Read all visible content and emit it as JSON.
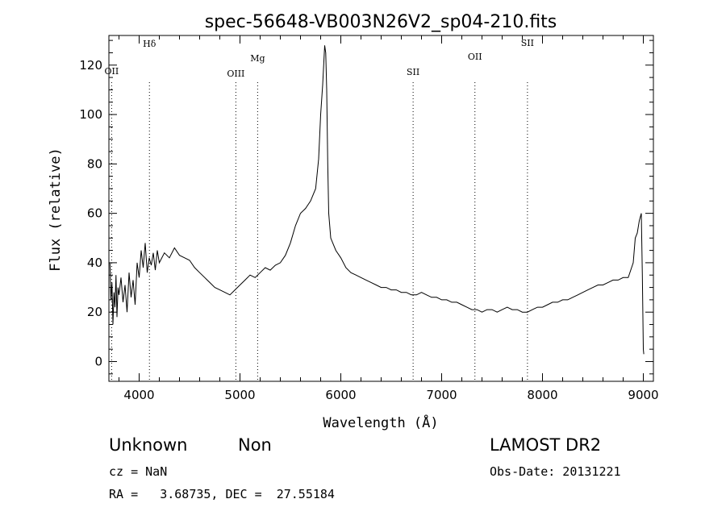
{
  "chart_data": {
    "type": "line",
    "title": "spec-56648-VB003N26V2_sp04-210.fits",
    "xlabel": "Wavelength (Å)",
    "ylabel": "Flux (relative)",
    "xlim": [
      3700,
      9100
    ],
    "ylim": [
      -8,
      132
    ],
    "xticks": [
      4000,
      5000,
      6000,
      7000,
      8000,
      9000
    ],
    "yticks": [
      0,
      20,
      40,
      60,
      80,
      100,
      120
    ],
    "grid": false,
    "series": [
      {
        "color": "#000000",
        "points": [
          [
            3710,
            40
          ],
          [
            3720,
            25
          ],
          [
            3730,
            32
          ],
          [
            3740,
            15
          ],
          [
            3750,
            28
          ],
          [
            3760,
            22
          ],
          [
            3770,
            35
          ],
          [
            3780,
            18
          ],
          [
            3790,
            30
          ],
          [
            3800,
            27
          ],
          [
            3820,
            34
          ],
          [
            3840,
            24
          ],
          [
            3860,
            31
          ],
          [
            3880,
            20
          ],
          [
            3900,
            36
          ],
          [
            3920,
            26
          ],
          [
            3940,
            33
          ],
          [
            3960,
            23
          ],
          [
            3980,
            40
          ],
          [
            4000,
            34
          ],
          [
            4020,
            45
          ],
          [
            4040,
            38
          ],
          [
            4060,
            48
          ],
          [
            4080,
            36
          ],
          [
            4100,
            42
          ],
          [
            4120,
            39
          ],
          [
            4140,
            44
          ],
          [
            4160,
            37
          ],
          [
            4180,
            45
          ],
          [
            4200,
            40
          ],
          [
            4250,
            44
          ],
          [
            4300,
            42
          ],
          [
            4350,
            46
          ],
          [
            4400,
            43
          ],
          [
            4450,
            42
          ],
          [
            4500,
            41
          ],
          [
            4550,
            38
          ],
          [
            4600,
            36
          ],
          [
            4650,
            34
          ],
          [
            4700,
            32
          ],
          [
            4750,
            30
          ],
          [
            4800,
            29
          ],
          [
            4850,
            28
          ],
          [
            4900,
            27
          ],
          [
            4950,
            29
          ],
          [
            5000,
            31
          ],
          [
            5050,
            33
          ],
          [
            5100,
            35
          ],
          [
            5150,
            34
          ],
          [
            5200,
            36
          ],
          [
            5250,
            38
          ],
          [
            5300,
            37
          ],
          [
            5350,
            39
          ],
          [
            5400,
            40
          ],
          [
            5450,
            43
          ],
          [
            5500,
            48
          ],
          [
            5550,
            55
          ],
          [
            5600,
            60
          ],
          [
            5650,
            62
          ],
          [
            5700,
            65
          ],
          [
            5750,
            70
          ],
          [
            5780,
            82
          ],
          [
            5800,
            100
          ],
          [
            5820,
            112
          ],
          [
            5840,
            128
          ],
          [
            5850,
            125
          ],
          [
            5860,
            110
          ],
          [
            5870,
            80
          ],
          [
            5880,
            60
          ],
          [
            5900,
            50
          ],
          [
            5950,
            45
          ],
          [
            6000,
            42
          ],
          [
            6050,
            38
          ],
          [
            6100,
            36
          ],
          [
            6150,
            35
          ],
          [
            6200,
            34
          ],
          [
            6250,
            33
          ],
          [
            6300,
            32
          ],
          [
            6350,
            31
          ],
          [
            6400,
            30
          ],
          [
            6450,
            30
          ],
          [
            6500,
            29
          ],
          [
            6550,
            29
          ],
          [
            6600,
            28
          ],
          [
            6650,
            28
          ],
          [
            6700,
            27
          ],
          [
            6750,
            27
          ],
          [
            6800,
            28
          ],
          [
            6850,
            27
          ],
          [
            6900,
            26
          ],
          [
            6950,
            26
          ],
          [
            7000,
            25
          ],
          [
            7050,
            25
          ],
          [
            7100,
            24
          ],
          [
            7150,
            24
          ],
          [
            7200,
            23
          ],
          [
            7250,
            22
          ],
          [
            7300,
            21
          ],
          [
            7350,
            21
          ],
          [
            7400,
            20
          ],
          [
            7450,
            21
          ],
          [
            7500,
            21
          ],
          [
            7550,
            20
          ],
          [
            7600,
            21
          ],
          [
            7650,
            22
          ],
          [
            7700,
            21
          ],
          [
            7750,
            21
          ],
          [
            7800,
            20
          ],
          [
            7850,
            20
          ],
          [
            7900,
            21
          ],
          [
            7950,
            22
          ],
          [
            8000,
            22
          ],
          [
            8050,
            23
          ],
          [
            8100,
            24
          ],
          [
            8150,
            24
          ],
          [
            8200,
            25
          ],
          [
            8250,
            25
          ],
          [
            8300,
            26
          ],
          [
            8350,
            27
          ],
          [
            8400,
            28
          ],
          [
            8450,
            29
          ],
          [
            8500,
            30
          ],
          [
            8550,
            31
          ],
          [
            8600,
            31
          ],
          [
            8650,
            32
          ],
          [
            8700,
            33
          ],
          [
            8750,
            33
          ],
          [
            8800,
            34
          ],
          [
            8850,
            34
          ],
          [
            8900,
            40
          ],
          [
            8920,
            50
          ],
          [
            8940,
            52
          ],
          [
            8960,
            57
          ],
          [
            8980,
            60
          ],
          [
            8990,
            35
          ],
          [
            9000,
            5
          ],
          [
            9005,
            3
          ]
        ]
      }
    ],
    "annotations": [
      {
        "label": "OII",
        "x": 3727
      },
      {
        "label": "Hδ",
        "x": 4102
      },
      {
        "label": "OIII",
        "x": 4959
      },
      {
        "label": "Mg",
        "x": 5175
      },
      {
        "label": "SII",
        "x": 6717
      },
      {
        "label": "OII",
        "x": 7330
      },
      {
        "label": "SII",
        "x": 7851
      }
    ]
  },
  "footer": {
    "class_label": "Unknown",
    "subclass_label": "Non",
    "survey": "LAMOST DR2",
    "cz": "cz = NaN",
    "obs_date": "Obs-Date: 20131221",
    "coords": "RA =   3.68735, DEC =  27.55184"
  }
}
